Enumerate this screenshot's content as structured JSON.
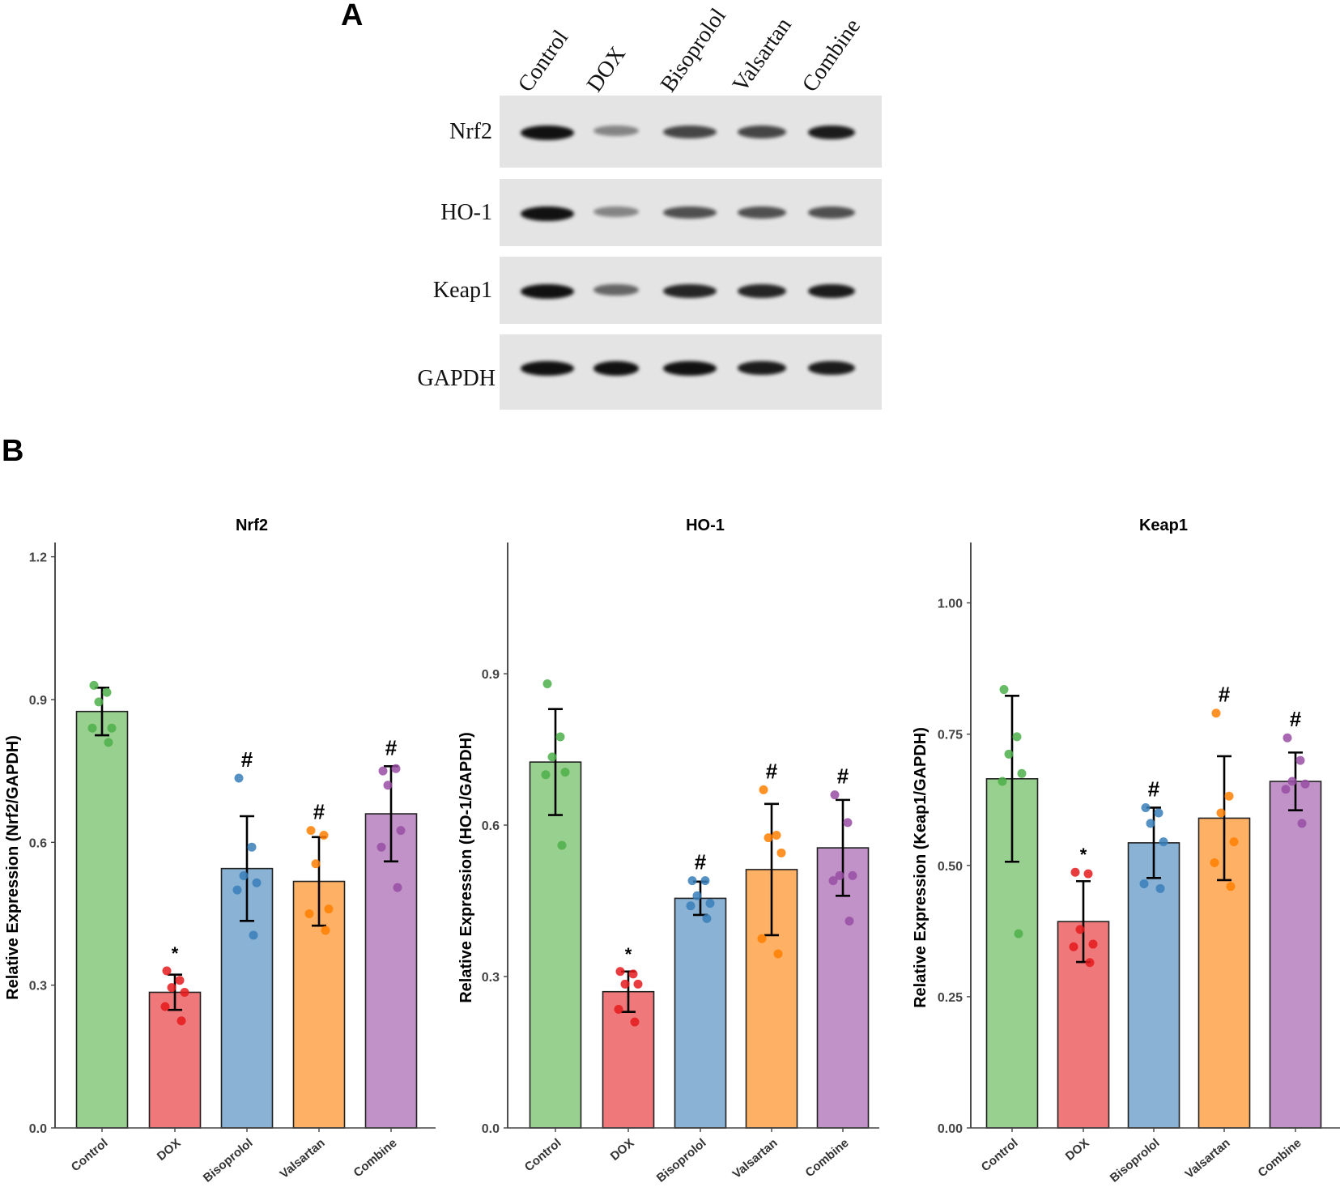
{
  "panel_labels": {
    "a": "A",
    "b": "B"
  },
  "blot": {
    "lanes": [
      "Control",
      "DOX",
      "Bisoprolol",
      "Valsartan",
      "Combine"
    ],
    "rows": [
      {
        "label": "Nrf2",
        "intensity": [
          1.0,
          0.45,
          0.75,
          0.75,
          0.95
        ]
      },
      {
        "label": "HO-1",
        "intensity": [
          1.0,
          0.45,
          0.7,
          0.7,
          0.7
        ]
      },
      {
        "label": "Keap1",
        "intensity": [
          1.0,
          0.6,
          0.9,
          0.9,
          0.95
        ]
      },
      {
        "label": "GAPDH",
        "intensity": [
          1.0,
          1.0,
          1.0,
          0.95,
          0.95
        ]
      }
    ]
  },
  "colors": {
    "Control": {
      "fill": "#98d08f",
      "dot": "#4daf4a"
    },
    "DOX": {
      "fill": "#ef787a",
      "dot": "#e41a1c"
    },
    "Bisoprolol": {
      "fill": "#8ab2d5",
      "dot": "#377eb8"
    },
    "Valsartan": {
      "fill": "#feb165",
      "dot": "#ff7f00"
    },
    "Combine": {
      "fill": "#c192c7",
      "dot": "#984ea3"
    }
  },
  "chart_data": [
    {
      "type": "bar",
      "title": "Nrf2",
      "xlabel": "",
      "ylabel": "Relative Expression (Nrf2/GAPDH)",
      "categories": [
        "Control",
        "DOX",
        "Bisoprolol",
        "Valsartan",
        "Combine"
      ],
      "values": [
        0.875,
        0.285,
        0.545,
        0.518,
        0.66
      ],
      "error": [
        0.05,
        0.037,
        0.11,
        0.093,
        0.1
      ],
      "points": [
        [
          0.93,
          0.915,
          0.895,
          0.84,
          0.84,
          0.81
        ],
        [
          0.33,
          0.31,
          0.295,
          0.285,
          0.255,
          0.225
        ],
        [
          0.735,
          0.59,
          0.53,
          0.515,
          0.5,
          0.405
        ],
        [
          0.625,
          0.615,
          0.555,
          0.46,
          0.45,
          0.415
        ],
        [
          0.75,
          0.755,
          0.72,
          0.625,
          0.59,
          0.505
        ]
      ],
      "annotations": [
        "",
        "*",
        "#",
        "#",
        "#"
      ],
      "yticks": [
        "0.0",
        "0.3",
        "0.6",
        "0.9",
        "1.2"
      ],
      "ytick_values": [
        0,
        0.3,
        0.6,
        0.9,
        1.2
      ],
      "ylim": [
        0,
        1.23
      ]
    },
    {
      "type": "bar",
      "title": "HO-1",
      "xlabel": "",
      "ylabel": "Relative Expression (HO-1/GAPDH)",
      "categories": [
        "Control",
        "DOX",
        "Bisoprolol",
        "Valsartan",
        "Combine"
      ],
      "values": [
        0.725,
        0.27,
        0.455,
        0.512,
        0.555
      ],
      "error": [
        0.105,
        0.04,
        0.033,
        0.13,
        0.095
      ],
      "points": [
        [
          0.88,
          0.775,
          0.735,
          0.705,
          0.7,
          0.56
        ],
        [
          0.31,
          0.305,
          0.285,
          0.285,
          0.235,
          0.21
        ],
        [
          0.49,
          0.49,
          0.46,
          0.445,
          0.44,
          0.415
        ],
        [
          0.67,
          0.58,
          0.575,
          0.545,
          0.375,
          0.345
        ],
        [
          0.66,
          0.605,
          0.5,
          0.5,
          0.49,
          0.41
        ]
      ],
      "annotations": [
        "",
        "*",
        "#",
        "#",
        "#"
      ],
      "yticks": [
        "0.0",
        "0.3",
        "0.6",
        "0.9"
      ],
      "ytick_values": [
        0,
        0.3,
        0.6,
        0.9
      ],
      "ylim": [
        0,
        1.16
      ]
    },
    {
      "type": "bar",
      "title": "Keap1",
      "xlabel": "",
      "ylabel": "Relative Expression (Keap1/GAPDH)",
      "categories": [
        "Control",
        "DOX",
        "Bisoprolol",
        "Valsartan",
        "Combine"
      ],
      "values": [
        0.665,
        0.393,
        0.543,
        0.59,
        0.66
      ],
      "error": [
        0.158,
        0.077,
        0.067,
        0.118,
        0.055
      ],
      "points": [
        [
          0.835,
          0.745,
          0.712,
          0.675,
          0.66,
          0.37
        ],
        [
          0.487,
          0.484,
          0.378,
          0.35,
          0.345,
          0.315
        ],
        [
          0.61,
          0.6,
          0.58,
          0.545,
          0.465,
          0.456
        ],
        [
          0.79,
          0.632,
          0.6,
          0.545,
          0.505,
          0.46
        ],
        [
          0.743,
          0.7,
          0.66,
          0.655,
          0.645,
          0.58
        ]
      ],
      "annotations": [
        "",
        "*",
        "#",
        "#",
        "#"
      ],
      "yticks": [
        "0.00",
        "0.25",
        "0.50",
        "0.75",
        "1.00"
      ],
      "ytick_values": [
        0,
        0.25,
        0.5,
        0.75,
        1.0
      ],
      "ylim": [
        0,
        1.115
      ]
    }
  ]
}
